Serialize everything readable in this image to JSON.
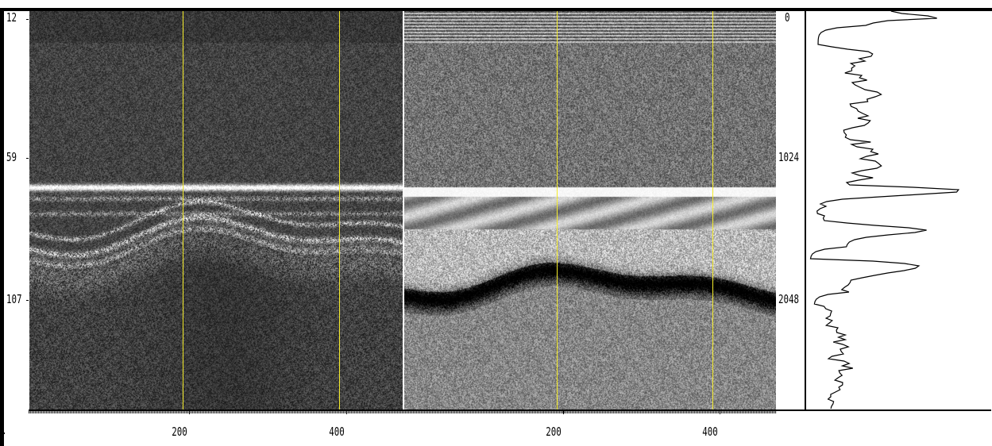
{
  "left_panel": {
    "axis_labels": [
      "12",
      "59",
      "107"
    ],
    "x_labels": [
      "200",
      "400"
    ]
  },
  "middle_panel": {
    "x_labels": [
      "200",
      "400"
    ]
  },
  "right_panel": {
    "axis_labels": [
      "0",
      "1024",
      "2048"
    ]
  },
  "colors": {
    "marker": "#f5ec2b",
    "frame": "#000000",
    "background": "#ffffff"
  }
}
